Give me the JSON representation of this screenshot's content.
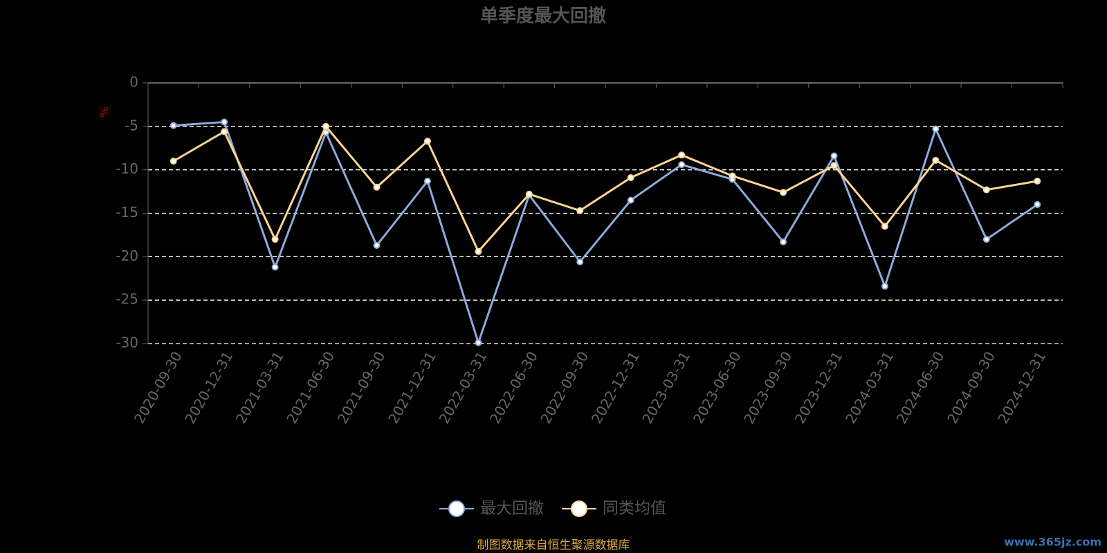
{
  "chart_data": {
    "type": "line",
    "title": "单季度最大回撤",
    "y_label": "%",
    "categories": [
      "2020-09-30",
      "2020-12-31",
      "2021-03-31",
      "2021-06-30",
      "2021-09-30",
      "2021-12-31",
      "2022-03-31",
      "2022-06-30",
      "2022-09-30",
      "2022-12-31",
      "2023-03-31",
      "2023-06-30",
      "2023-09-30",
      "2023-12-31",
      "2024-03-31",
      "2024-06-30",
      "2024-09-30",
      "2024-12-31"
    ],
    "series": [
      {
        "name": "最大回撤",
        "color": "#8eaadb",
        "values": [
          -4.9,
          -4.5,
          -21.2,
          -5.7,
          -18.7,
          -11.3,
          -29.9,
          -12.9,
          -20.6,
          -13.5,
          -9.4,
          -11.1,
          -18.3,
          -8.4,
          -23.4,
          -5.3,
          -18.0,
          -14.0
        ]
      },
      {
        "name": "同类均值",
        "color": "#ffd591",
        "values": [
          -9.0,
          -5.6,
          -18.0,
          -5.0,
          -12.0,
          -6.7,
          -19.4,
          -12.8,
          -14.7,
          -10.9,
          -8.3,
          -10.7,
          -12.6,
          -9.5,
          -16.5,
          -8.9,
          -12.3,
          -11.3
        ]
      }
    ],
    "ylim": [
      -30,
      0
    ],
    "yticks": [
      0,
      -5,
      -10,
      -15,
      -20,
      -25,
      -30
    ],
    "grid": true,
    "source": "制图数据来自恒生聚源数据库",
    "watermark": "www.365jz.com"
  }
}
